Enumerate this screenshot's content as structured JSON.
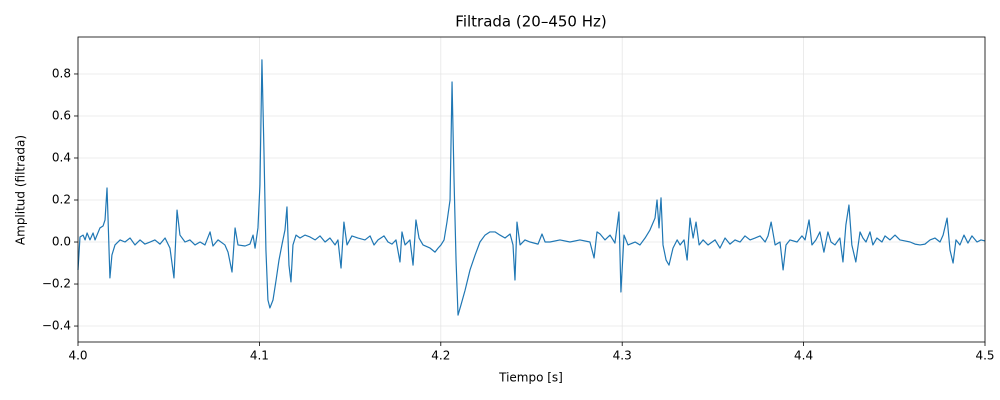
{
  "chart_data": {
    "type": "line",
    "title": "Filtrada (20–450 Hz)",
    "xlabel": "Tiempo [s]",
    "ylabel": "Amplitud (filtrada)",
    "xlim": [
      4.0,
      4.5
    ],
    "ylim": [
      -0.476,
      0.976
    ],
    "xticks": [
      {
        "value": 4,
        "label": "4.0"
      },
      4.1,
      4.2,
      4.3,
      4.4,
      4.5
    ],
    "yticks": [
      {
        "value": -0.4,
        "label": "−0.4"
      },
      {
        "value": -0.2,
        "label": "−0.2"
      },
      {
        "value": 0,
        "label": "0.0"
      },
      0.2,
      0.4,
      0.6,
      0.8
    ],
    "grid": true,
    "x": [
      4.0,
      4.0011,
      4.0028,
      4.0039,
      4.005,
      4.0066,
      4.0083,
      4.0094,
      4.0121,
      4.0138,
      4.0149,
      4.016,
      4.0165,
      4.0176,
      4.0187,
      4.0204,
      4.0232,
      4.0259,
      4.0287,
      4.0314,
      4.0342,
      4.0369,
      4.0397,
      4.0424,
      4.0452,
      4.048,
      4.0507,
      4.0529,
      4.0546,
      4.0562,
      4.059,
      4.0617,
      4.0645,
      4.0673,
      4.07,
      4.0728,
      4.0744,
      4.0772,
      4.081,
      4.0827,
      4.0849,
      4.0866,
      4.0882,
      4.0921,
      4.0948,
      4.0965,
      4.0976,
      4.0992,
      4.1003,
      4.1014,
      4.1025,
      4.1036,
      4.1047,
      4.1058,
      4.1075,
      4.1092,
      4.1108,
      4.1125,
      4.1141,
      4.1152,
      4.1163,
      4.1174,
      4.1185,
      4.1202,
      4.1224,
      4.1251,
      4.1279,
      4.1307,
      4.1334,
      4.1362,
      4.1389,
      4.1417,
      4.1433,
      4.145,
      4.1466,
      4.1483,
      4.151,
      4.1544,
      4.1582,
      4.161,
      4.1632,
      4.1654,
      4.1687,
      4.1709,
      4.1731,
      4.1753,
      4.1775,
      4.1786,
      4.1803,
      4.183,
      4.1847,
      4.1863,
      4.188,
      4.1902,
      4.1941,
      4.1968,
      4.1985,
      4.2001,
      4.2018,
      4.2034,
      4.2051,
      4.2062,
      4.2073,
      4.2084,
      4.2095,
      4.2111,
      4.2134,
      4.2161,
      4.2189,
      4.2216,
      4.2244,
      4.2271,
      4.2299,
      4.2326,
      4.2354,
      4.2382,
      4.2398,
      4.2409,
      4.242,
      4.2437,
      4.2464,
      4.2492,
      4.2536,
      4.2558,
      4.2575,
      4.2602,
      4.2657,
      4.2712,
      4.2767,
      4.2822,
      4.2845,
      4.2861,
      4.2878,
      4.2905,
      4.2933,
      4.296,
      4.2982,
      4.2993,
      4.301,
      4.3032,
      4.3071,
      4.3098,
      4.3126,
      4.3153,
      4.3181,
      4.3192,
      4.3203,
      4.3214,
      4.3225,
      4.3242,
      4.3258,
      4.328,
      4.3303,
      4.3319,
      4.3341,
      4.3358,
      4.3374,
      4.3391,
      4.3407,
      4.3424,
      4.3446,
      4.3473,
      4.3512,
      4.3539,
      4.3567,
      4.3594,
      4.3622,
      4.365,
      4.3677,
      4.3705,
      4.3732,
      4.376,
      4.3788,
      4.3804,
      4.3821,
      4.3843,
      4.387,
      4.3887,
      4.3903,
      4.3925,
      4.3964,
      4.3991,
      4.4008,
      4.403,
      4.4046,
      4.4068,
      4.409,
      4.4112,
      4.4134,
      4.4151,
      4.4173,
      4.42,
      4.4217,
      4.4233,
      4.425,
      4.4266,
      4.4288,
      4.4311,
      4.4327,
      4.4344,
      4.4366,
      4.4382,
      4.4404,
      4.4432,
      4.4449,
      4.4476,
      4.4504,
      4.4531,
      4.4559,
      4.4587,
      4.4614,
      4.4642,
      4.4669,
      4.4697,
      4.4724,
      4.4752,
      4.4769,
      4.4791,
      4.4807,
      4.4824,
      4.484,
      4.4862,
      4.4884,
      4.4906,
      4.4928,
      4.4956,
      4.4978,
      4.5
    ],
    "series": [
      {
        "color": "#1f77b4",
        "values": [
          -0.133,
          0.024,
          0.033,
          0.01,
          0.043,
          0.01,
          0.043,
          0.01,
          0.067,
          0.076,
          0.105,
          0.257,
          0.129,
          -0.171,
          -0.062,
          -0.014,
          0.01,
          0.0,
          0.019,
          -0.014,
          0.01,
          -0.01,
          0.0,
          0.01,
          -0.01,
          0.019,
          -0.029,
          -0.171,
          0.152,
          0.033,
          0.0,
          0.01,
          -0.014,
          0.0,
          -0.014,
          0.048,
          -0.019,
          0.01,
          -0.014,
          -0.048,
          -0.143,
          0.067,
          -0.014,
          -0.019,
          -0.01,
          0.033,
          -0.029,
          0.067,
          0.271,
          0.867,
          0.438,
          -0.038,
          -0.276,
          -0.314,
          -0.276,
          -0.181,
          -0.086,
          -0.01,
          0.057,
          0.167,
          -0.11,
          -0.19,
          -0.014,
          0.033,
          0.019,
          0.033,
          0.024,
          0.01,
          0.029,
          0.0,
          0.019,
          -0.014,
          0.01,
          -0.124,
          0.095,
          -0.014,
          0.029,
          0.019,
          0.01,
          0.029,
          -0.014,
          0.01,
          0.029,
          0.0,
          -0.01,
          0.01,
          -0.095,
          0.048,
          -0.014,
          0.01,
          -0.11,
          0.105,
          0.019,
          -0.014,
          -0.029,
          -0.048,
          -0.029,
          -0.014,
          0.01,
          0.095,
          0.2,
          0.762,
          0.295,
          -0.086,
          -0.348,
          -0.3,
          -0.229,
          -0.133,
          -0.062,
          0.0,
          0.033,
          0.048,
          0.048,
          0.033,
          0.019,
          0.038,
          -0.014,
          -0.181,
          0.095,
          -0.014,
          0.01,
          0.0,
          -0.01,
          0.038,
          0.0,
          0.0,
          0.01,
          0.0,
          0.01,
          0.0,
          -0.076,
          0.048,
          0.038,
          0.01,
          0.033,
          -0.005,
          0.143,
          -0.238,
          0.033,
          -0.014,
          0.0,
          -0.014,
          0.019,
          0.057,
          0.114,
          0.2,
          0.067,
          0.21,
          -0.014,
          -0.086,
          -0.11,
          -0.029,
          0.01,
          -0.014,
          0.01,
          -0.086,
          0.114,
          0.019,
          0.095,
          -0.014,
          0.01,
          -0.014,
          0.01,
          -0.029,
          0.019,
          -0.01,
          0.01,
          0.0,
          0.029,
          0.01,
          0.019,
          0.029,
          0.0,
          0.029,
          0.095,
          -0.014,
          0.0,
          -0.133,
          -0.014,
          0.01,
          0.0,
          0.029,
          0.01,
          0.105,
          -0.014,
          0.01,
          0.048,
          -0.048,
          0.048,
          0.0,
          -0.014,
          0.019,
          -0.095,
          0.081,
          0.176,
          -0.014,
          -0.095,
          0.048,
          0.019,
          0.0,
          0.048,
          -0.014,
          0.019,
          0.0,
          0.029,
          0.01,
          0.033,
          0.01,
          0.005,
          0.0,
          -0.01,
          -0.014,
          -0.01,
          0.01,
          0.019,
          0.0,
          0.033,
          0.114,
          -0.038,
          -0.1,
          0.01,
          -0.014,
          0.033,
          -0.005,
          0.029,
          0.0,
          0.01,
          0.005
        ]
      }
    ]
  }
}
